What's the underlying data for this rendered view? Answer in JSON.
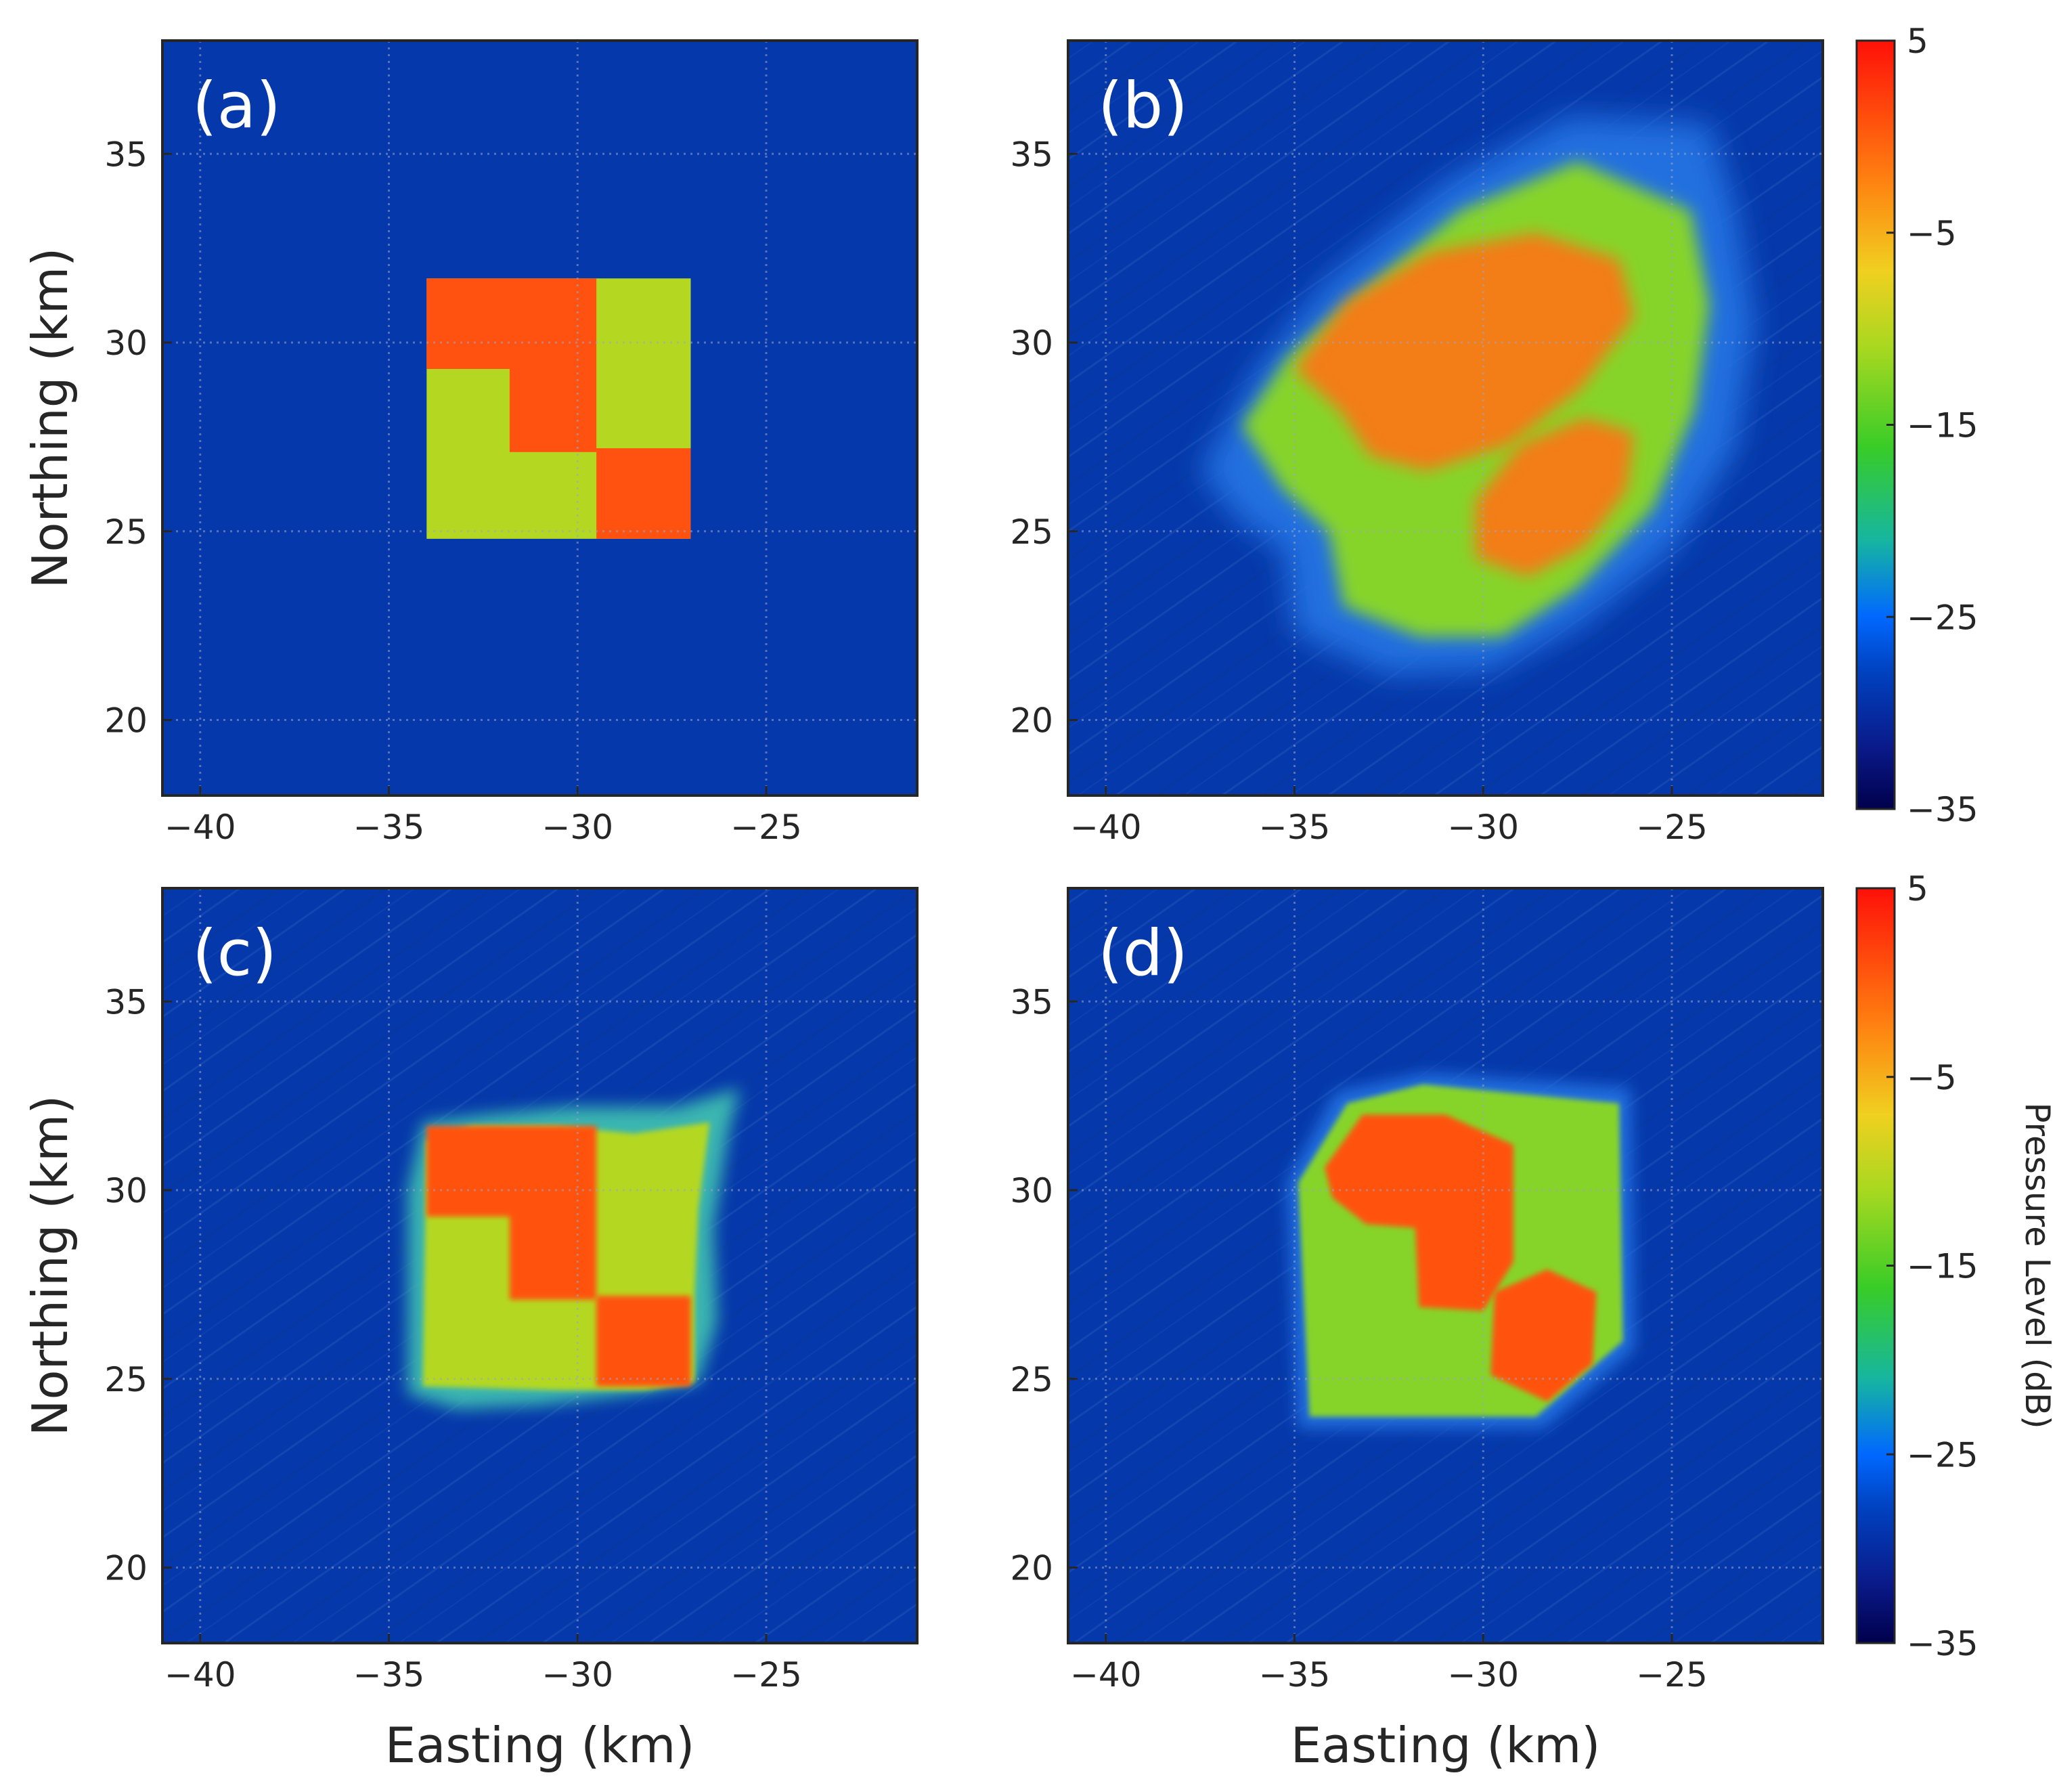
{
  "chart_data": {
    "type": "heatmap",
    "colormap": "jet",
    "background_value": -29,
    "x_axis": {
      "label": "Easting (km)",
      "range": [
        -41,
        -21
      ],
      "ticks": [
        -40,
        -35,
        -30,
        -25
      ],
      "tick_labels": [
        "−40",
        "−35",
        "−30",
        "−25"
      ]
    },
    "y_axis": {
      "label": "Northing (km)",
      "range": [
        18,
        38
      ],
      "ticks": [
        20,
        25,
        30,
        35
      ],
      "tick_labels": [
        "20",
        "25",
        "30",
        "35"
      ]
    },
    "colorbar": {
      "label": "Pressure Level (dB)",
      "range": [
        -35,
        5
      ],
      "ticks": [
        5,
        -5,
        -15,
        -25,
        -35
      ],
      "tick_labels": [
        "5",
        "−5",
        "−15",
        "−25",
        "−35"
      ]
    },
    "panels": [
      {
        "id": "a",
        "label": "(a)",
        "show_ylabel": true,
        "show_xlabel": false,
        "regions": [
          {
            "polygon": [
              [
                -34,
                24.8
              ],
              [
                -27,
                24.8
              ],
              [
                -27,
                31.7
              ],
              [
                -34,
                31.7
              ]
            ],
            "value": -8.5
          },
          {
            "polygon": [
              [
                -34,
                29.3
              ],
              [
                -34,
                31.7
              ],
              [
                -29.5,
                31.7
              ],
              [
                -29.5,
                27.1
              ],
              [
                -31.8,
                27.1
              ],
              [
                -31.8,
                29.3
              ]
            ],
            "value": 0
          },
          {
            "polygon": [
              [
                -29.5,
                24.8
              ],
              [
                -27,
                24.8
              ],
              [
                -27,
                27.2
              ],
              [
                -29.5,
                27.2
              ]
            ],
            "value": 0
          }
        ]
      },
      {
        "id": "b",
        "label": "(b)",
        "show_ylabel": false,
        "show_xlabel": false,
        "regions": [
          {
            "polygon": [
              [
                -37.5,
                26.6
              ],
              [
                -36.5,
                25.3
              ],
              [
                -35.3,
                24.5
              ],
              [
                -35,
                22.3
              ],
              [
                -32.5,
                21.2
              ],
              [
                -29.8,
                21.3
              ],
              [
                -27.4,
                22.5
              ],
              [
                -25,
                24.5
              ],
              [
                -23.3,
                27.2
              ],
              [
                -22.8,
                30.5
              ],
              [
                -23.3,
                33.5
              ],
              [
                -24,
                35.8
              ],
              [
                -27.7,
                36
              ],
              [
                -31,
                34.3
              ],
              [
                -34.2,
                31.6
              ],
              [
                -36,
                29.3
              ]
            ],
            "value": -25
          },
          {
            "polygon": [
              [
                -36.4,
                27.8
              ],
              [
                -35.3,
                26.1
              ],
              [
                -34.1,
                25
              ],
              [
                -33.7,
                23
              ],
              [
                -31.7,
                22.2
              ],
              [
                -29.5,
                22.2
              ],
              [
                -27.5,
                23.5
              ],
              [
                -25.5,
                25.6
              ],
              [
                -24.4,
                28.2
              ],
              [
                -24,
                31
              ],
              [
                -24.5,
                33.5
              ],
              [
                -27.5,
                34.8
              ],
              [
                -30.6,
                33.5
              ],
              [
                -33.4,
                31.2
              ],
              [
                -35.2,
                29.6
              ]
            ],
            "value": -13
          },
          {
            "polygon": [
              [
                -35,
                29.3
              ],
              [
                -33.8,
                28.2
              ],
              [
                -33,
                27
              ],
              [
                -31.5,
                26.6
              ],
              [
                -29.3,
                27.3
              ],
              [
                -27.4,
                28.8
              ],
              [
                -26,
                30.7
              ],
              [
                -26.4,
                32.2
              ],
              [
                -28.6,
                32.9
              ],
              [
                -31.4,
                32.4
              ],
              [
                -33.6,
                31.1
              ]
            ],
            "value": -4
          },
          {
            "polygon": [
              [
                -30.2,
                24.3
              ],
              [
                -28.8,
                23.8
              ],
              [
                -27.3,
                24.6
              ],
              [
                -26.2,
                26.1
              ],
              [
                -26,
                27.6
              ],
              [
                -27.3,
                28
              ],
              [
                -29,
                27.3
              ],
              [
                -30.2,
                25.8
              ]
            ],
            "value": -4
          }
        ]
      },
      {
        "id": "c",
        "label": "(c)",
        "show_ylabel": true,
        "show_xlabel": true,
        "regions": [
          {
            "polygon": [
              [
                -34.5,
                24.6
              ],
              [
                -33.2,
                24.2
              ],
              [
                -31,
                24.3
              ],
              [
                -28.5,
                24.6
              ],
              [
                -26.8,
                24.9
              ],
              [
                -26.3,
                26.5
              ],
              [
                -26.4,
                29
              ],
              [
                -26,
                31.5
              ],
              [
                -25.7,
                32.7
              ],
              [
                -27.4,
                32.2
              ],
              [
                -30.2,
                32.2
              ],
              [
                -32.5,
                32
              ],
              [
                -34.1,
                31.8
              ],
              [
                -34.5,
                30
              ]
            ],
            "value": -24
          },
          {
            "polygon": [
              [
                -34.1,
                24.8
              ],
              [
                -30.5,
                24.7
              ],
              [
                -28.2,
                24.7
              ],
              [
                -26.9,
                24.9
              ],
              [
                -26.9,
                27.2
              ],
              [
                -26.8,
                29.5
              ],
              [
                -26.5,
                31.8
              ],
              [
                -28.5,
                31.5
              ],
              [
                -30.6,
                31.7
              ],
              [
                -32.8,
                31.7
              ],
              [
                -34,
                31.3
              ]
            ],
            "value": -9
          },
          {
            "polygon": [
              [
                -34,
                29.3
              ],
              [
                -34,
                31.7
              ],
              [
                -29.5,
                31.7
              ],
              [
                -29.5,
                27.1
              ],
              [
                -31.8,
                27.1
              ],
              [
                -31.8,
                29.3
              ]
            ],
            "value": 0
          },
          {
            "polygon": [
              [
                -29.5,
                24.8
              ],
              [
                -27,
                24.8
              ],
              [
                -27,
                27.2
              ],
              [
                -29.5,
                27.2
              ]
            ],
            "value": 0
          }
        ]
      },
      {
        "id": "d",
        "label": "(d)",
        "show_ylabel": false,
        "show_xlabel": true,
        "regions": [
          {
            "polygon": [
              [
                -34.9,
                23.7
              ],
              [
                -28.4,
                23.7
              ],
              [
                -26,
                25.8
              ],
              [
                -26.1,
                32.7
              ],
              [
                -31.5,
                33.1
              ],
              [
                -33.9,
                32.6
              ],
              [
                -35.2,
                30.2
              ]
            ],
            "value": -25
          },
          {
            "polygon": [
              [
                -34.6,
                24
              ],
              [
                -28.6,
                24
              ],
              [
                -26.3,
                26
              ],
              [
                -26.4,
                32.3
              ],
              [
                -31.6,
                32.8
              ],
              [
                -33.6,
                32.3
              ],
              [
                -34.9,
                30.2
              ]
            ],
            "value": -10
          },
          {
            "polygon": [
              [
                -34.2,
                30.6
              ],
              [
                -33.2,
                32
              ],
              [
                -31,
                32
              ],
              [
                -29.2,
                31.2
              ],
              [
                -29.2,
                28.1
              ],
              [
                -30,
                26.8
              ],
              [
                -31.7,
                26.9
              ],
              [
                -31.8,
                29
              ],
              [
                -33.1,
                29.1
              ],
              [
                -34,
                29.8
              ]
            ],
            "value": 0
          },
          {
            "polygon": [
              [
                -29.8,
                25.1
              ],
              [
                -28.3,
                24.4
              ],
              [
                -27.1,
                25.4
              ],
              [
                -27,
                27.3
              ],
              [
                -28.3,
                27.9
              ],
              [
                -29.7,
                27.3
              ]
            ],
            "value": 0
          }
        ]
      }
    ]
  }
}
